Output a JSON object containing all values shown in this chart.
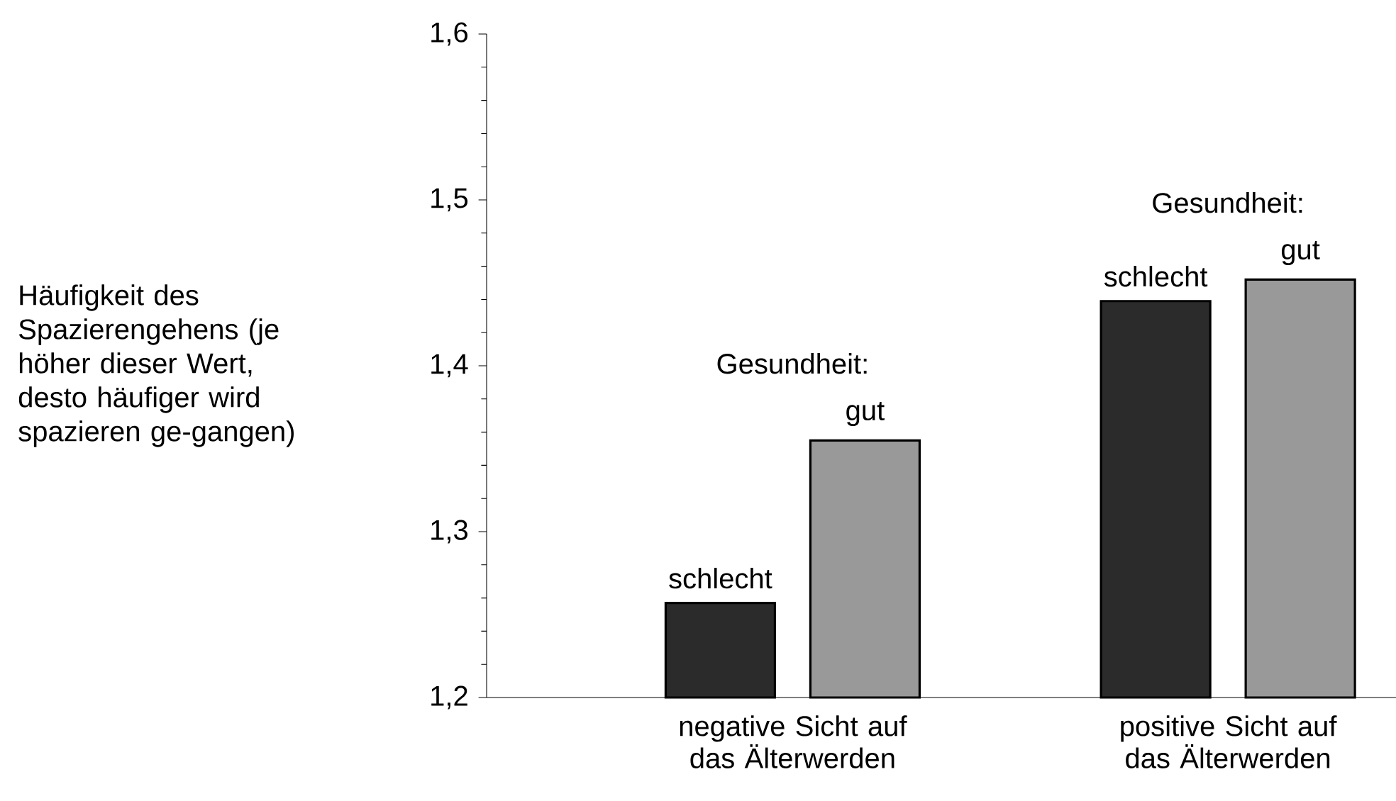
{
  "chart_data": {
    "type": "bar",
    "ylabel": "Häufigkeit des Spazierengehens (je höher dieser Wert, desto häufiger wird spazieren ge-gangen)",
    "legend_title": "Gesundheit:",
    "categories": [
      "negative Sicht auf das Älterwerden",
      "positive Sicht auf das Älterwerden"
    ],
    "series": [
      {
        "name": "schlecht",
        "color": "#2b2b2b",
        "values": [
          1.257,
          1.439
        ]
      },
      {
        "name": "gut",
        "color": "#999999",
        "values": [
          1.355,
          1.452
        ]
      }
    ],
    "ylim": [
      1.2,
      1.6
    ],
    "yticks": [
      {
        "value": 1.2,
        "label": "1,2"
      },
      {
        "value": 1.3,
        "label": "1,3"
      },
      {
        "value": 1.4,
        "label": "1,4"
      },
      {
        "value": 1.5,
        "label": "1,5"
      },
      {
        "value": 1.6,
        "label": "1,6"
      }
    ]
  }
}
